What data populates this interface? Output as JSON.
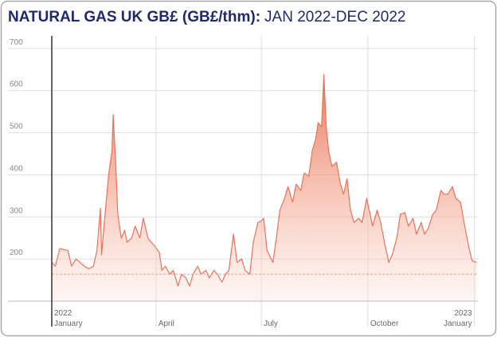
{
  "chart_data": {
    "type": "area",
    "title": "NATURAL GAS UK GB£ (GB£/thm):",
    "subtitle": "JAN 2022-DEC 2022",
    "x": [
      0,
      3,
      7,
      14,
      17,
      21,
      28,
      32,
      36,
      39,
      42,
      43,
      46,
      49,
      52,
      53,
      55,
      57,
      60,
      63,
      65,
      69,
      72,
      76,
      79,
      83,
      86,
      89,
      93,
      95,
      98,
      102,
      105,
      109,
      112,
      116,
      119,
      122,
      126,
      129,
      133,
      136,
      140,
      143,
      147,
      150,
      153,
      157,
      160,
      164,
      167,
      171,
      174,
      178,
      181,
      183,
      186,
      191,
      194,
      197,
      201,
      204,
      208,
      211,
      215,
      218,
      222,
      225,
      228,
      230,
      233,
      235,
      237,
      239,
      242,
      246,
      249,
      252,
      255,
      258,
      261,
      265,
      268,
      272,
      275,
      277,
      281,
      284,
      288,
      291,
      294,
      298,
      301,
      305,
      308,
      312,
      315,
      319,
      322,
      325,
      329,
      332,
      336,
      339,
      342,
      346,
      349,
      353,
      356,
      360,
      363,
      367
    ],
    "series": [
      {
        "name": "Natural Gas UK GB£",
        "color": "#e8735a",
        "values": [
          192,
          183,
          225,
          220,
          183,
          200,
          183,
          177,
          183,
          220,
          321,
          210,
          306,
          397,
          458,
          543,
          439,
          306,
          250,
          268,
          240,
          250,
          278,
          250,
          297,
          250,
          240,
          230,
          215,
          173,
          183,
          164,
          173,
          136,
          164,
          155,
          136,
          164,
          183,
          164,
          173,
          155,
          173,
          164,
          145,
          164,
          173,
          259,
          192,
          200,
          173,
          164,
          240,
          287,
          291,
          297,
          220,
          192,
          250,
          316,
          344,
          372,
          335,
          378,
          363,
          404,
          397,
          458,
          486,
          524,
          514,
          638,
          514,
          458,
          420,
          430,
          382,
          354,
          391,
          316,
          287,
          297,
          287,
          344,
          306,
          278,
          316,
          287,
          230,
          192,
          210,
          250,
          306,
          310,
          278,
          297,
          259,
          287,
          259,
          272,
          306,
          316,
          363,
          354,
          354,
          372,
          344,
          335,
          287,
          230,
          196,
          192
        ]
      }
    ],
    "reference_line": 164,
    "xlim": [
      0,
      368
    ],
    "xticks": [
      {
        "value": 0,
        "label": "January",
        "year": "2022"
      },
      {
        "value": 90,
        "label": "April"
      },
      {
        "value": 181,
        "label": "July"
      },
      {
        "value": 273,
        "label": "October"
      },
      {
        "value": 365,
        "label": "January",
        "year": "2023"
      }
    ],
    "ylim": [
      100,
      730
    ],
    "yticks": [
      200,
      300,
      400,
      500,
      600,
      700
    ],
    "grid": true
  }
}
